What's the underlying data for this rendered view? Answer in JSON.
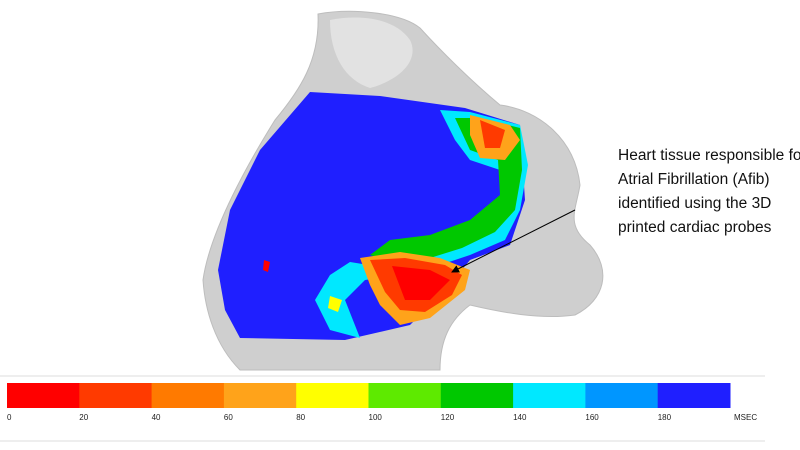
{
  "annotation": {
    "lines": [
      "Heart tissue responsible for",
      "Atrial Fibrillation (Afib)",
      "identified using the 3D",
      "printed cardiac probes"
    ]
  },
  "colorbar": {
    "colors": [
      "#ff0000",
      "#ff3a00",
      "#ff7a00",
      "#ffa31a",
      "#ffff00",
      "#5eea00",
      "#00c800",
      "#00e8ff",
      "#0096ff",
      "#1f1fff"
    ],
    "ticks": [
      0,
      20,
      40,
      60,
      80,
      100,
      120,
      140,
      160,
      180
    ],
    "unit": "MSEC"
  }
}
